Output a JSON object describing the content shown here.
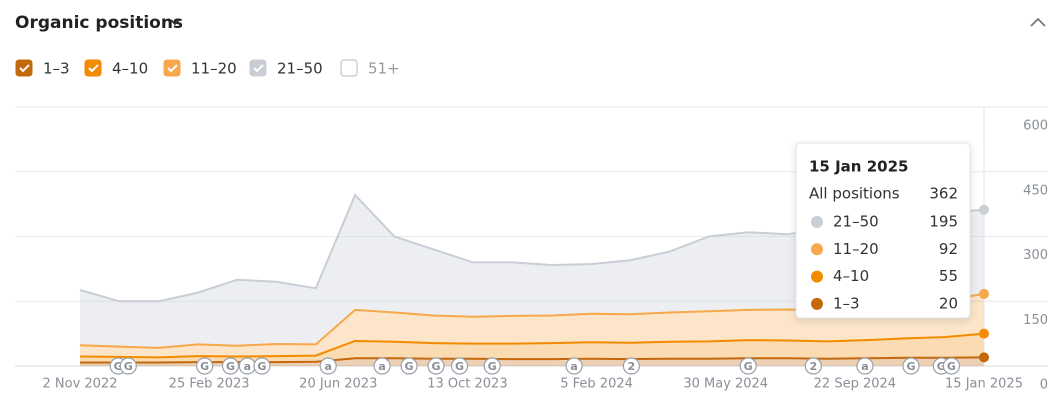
{
  "header": {
    "title": "Organic positions"
  },
  "chart_data": {
    "type": "stacked-area",
    "x": [
      "2022-11-02",
      "2022-12-07",
      "2023-01-11",
      "2023-02-15",
      "2023-03-22",
      "2023-04-26",
      "2023-05-31",
      "2023-07-05",
      "2023-08-09",
      "2023-09-13",
      "2023-10-18",
      "2023-11-22",
      "2023-12-27",
      "2024-01-31",
      "2024-03-06",
      "2024-04-10",
      "2024-05-15",
      "2024-06-19",
      "2024-07-24",
      "2024-08-28",
      "2024-10-02",
      "2024-11-06",
      "2024-12-11",
      "2025-01-15"
    ],
    "xlim": [
      "2022-11-02",
      "2025-01-15"
    ],
    "xticks": [
      {
        "value": "2022-11-02",
        "label": "2 Nov 2022"
      },
      {
        "value": "2023-02-25",
        "label": "25 Feb 2023"
      },
      {
        "value": "2023-06-20",
        "label": "20 Jun 2023"
      },
      {
        "value": "2023-10-13",
        "label": "13 Oct 2023"
      },
      {
        "value": "2024-02-05",
        "label": "5 Feb 2024"
      },
      {
        "value": "2024-05-30",
        "label": "30 May 2024"
      },
      {
        "value": "2024-09-22",
        "label": "22 Sep 2024"
      },
      {
        "value": "2025-01-15",
        "label": "15 Jan 2025"
      }
    ],
    "ylim": [
      0,
      600
    ],
    "yticks": [
      0,
      150,
      300,
      450,
      600
    ],
    "grid": true,
    "y_axis_side": "right",
    "series": [
      {
        "name": "1–3",
        "color": "#c4680c",
        "checked": true,
        "values": [
          8,
          8,
          8,
          9,
          9,
          9,
          10,
          18,
          18,
          17,
          17,
          16,
          16,
          17,
          16,
          17,
          17,
          18,
          18,
          17,
          18,
          19,
          19,
          20
        ]
      },
      {
        "name": "4–10",
        "color": "#f28b00",
        "checked": true,
        "values": [
          14,
          13,
          12,
          14,
          13,
          14,
          14,
          40,
          38,
          36,
          35,
          36,
          37,
          38,
          38,
          39,
          40,
          42,
          41,
          40,
          42,
          45,
          48,
          55
        ]
      },
      {
        "name": "11–20",
        "color": "#f6a84a",
        "checked": true,
        "values": [
          26,
          24,
          22,
          27,
          25,
          28,
          26,
          72,
          68,
          64,
          62,
          64,
          64,
          66,
          66,
          68,
          70,
          70,
          72,
          72,
          75,
          80,
          85,
          92
        ]
      },
      {
        "name": "21–50",
        "color": "#c9ced6",
        "checked": true,
        "values": [
          128,
          105,
          108,
          120,
          153,
          144,
          130,
          266,
          176,
          153,
          126,
          124,
          117,
          115,
          125,
          141,
          173,
          180,
          174,
          191,
          200,
          196,
          203,
          195
        ]
      }
    ],
    "unchecked_series": [
      {
        "name": "51+",
        "checked": false
      }
    ],
    "annotations": [
      {
        "x": "2022-12-06",
        "label": "G"
      },
      {
        "x": "2022-12-15",
        "label": "G"
      },
      {
        "x": "2023-02-21",
        "label": "G"
      },
      {
        "x": "2023-03-16",
        "label": "G"
      },
      {
        "x": "2023-03-31",
        "label": "a"
      },
      {
        "x": "2023-04-13",
        "label": "G"
      },
      {
        "x": "2023-06-11",
        "label": "a"
      },
      {
        "x": "2023-07-29",
        "label": "a"
      },
      {
        "x": "2023-08-22",
        "label": "G"
      },
      {
        "x": "2023-09-15",
        "label": "G"
      },
      {
        "x": "2023-10-06",
        "label": "G"
      },
      {
        "x": "2023-11-04",
        "label": "G"
      },
      {
        "x": "2024-01-16",
        "label": "a"
      },
      {
        "x": "2024-03-07",
        "label": "2"
      },
      {
        "x": "2024-06-19",
        "label": "G"
      },
      {
        "x": "2024-08-16",
        "label": "2"
      },
      {
        "x": "2024-10-01",
        "label": "a"
      },
      {
        "x": "2024-11-11",
        "label": "G"
      },
      {
        "x": "2024-12-08",
        "label": "G"
      },
      {
        "x": "2024-12-17",
        "label": "G"
      }
    ],
    "tooltip": {
      "date": "15 Jan 2025",
      "total_label": "All positions",
      "total": 362
    }
  }
}
